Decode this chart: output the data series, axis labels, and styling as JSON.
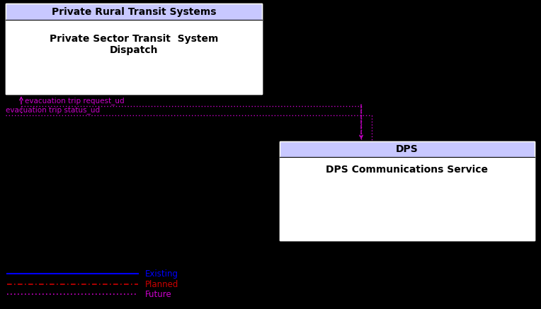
{
  "bg_color": "#000000",
  "box1_header_color": "#c8c8ff",
  "box1_header_text": "Private Rural Transit Systems",
  "box1_body_text": "Private Sector Transit  System\nDispatch",
  "box2_header_color": "#c8c8ff",
  "box2_header_text": "DPS",
  "box2_body_text": "DPS Communications Service",
  "line1_label": "evacuation trip request_ud",
  "line2_label": "evacuation trip status_ud",
  "arrow_color": "#cc00cc",
  "legend_existing_color": "#0000ff",
  "legend_planned_color": "#cc0000",
  "legend_future_color": "#cc00cc",
  "header_font_size": 10,
  "body_font_size": 10,
  "label_font_size": 7.5
}
